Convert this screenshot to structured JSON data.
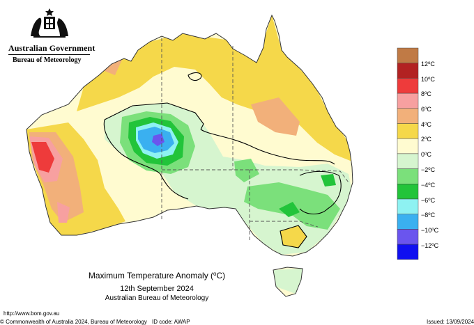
{
  "header": {
    "government": "Australian Government",
    "agency": "Bureau of Meteorology",
    "logo_icon": "coat-of-arms-icon"
  },
  "map_title": {
    "line1_text": "Maximum Temperature Anomaly (",
    "line1_unit": "o",
    "line1_tail": "C)",
    "date": "12th September 2024",
    "organisation": "Australian Bureau of Meteorology"
  },
  "legend": {
    "unit_symbol": "o",
    "items": [
      {
        "label": "12",
        "unit": "C",
        "color": "#c07a45"
      },
      {
        "label": "10",
        "unit": "C",
        "color": "#b22222"
      },
      {
        "label": "8",
        "unit": "C",
        "color": "#ee3b3b"
      },
      {
        "label": "6",
        "unit": "C",
        "color": "#f7a0a0"
      },
      {
        "label": "4",
        "unit": "C",
        "color": "#f2b07a"
      },
      {
        "label": "2",
        "unit": "C",
        "color": "#f5d84a"
      },
      {
        "label": "0",
        "unit": "C",
        "color": "#fffbd0"
      },
      {
        "label": "−2",
        "unit": "C",
        "color": "#d6f5cf"
      },
      {
        "label": "−4",
        "unit": "C",
        "color": "#7be07b"
      },
      {
        "label": "−6",
        "unit": "C",
        "color": "#22c43a"
      },
      {
        "label": "−8",
        "unit": "C",
        "color": "#8ef2f2"
      },
      {
        "label": "−10",
        "unit": "C",
        "color": "#3ab0f0"
      },
      {
        "label": "−12",
        "unit": "C",
        "color": "#6a55ee"
      },
      {
        "label": "",
        "unit": "",
        "color": "#1010f0"
      }
    ]
  },
  "footer": {
    "url": "http://www.bom.gov.au",
    "copyright": "© Commonwealth of Australia 2024, Bureau of Meteorology",
    "id_code": "ID code: AWAP",
    "issued": "Issued: 13/09/2024"
  }
}
